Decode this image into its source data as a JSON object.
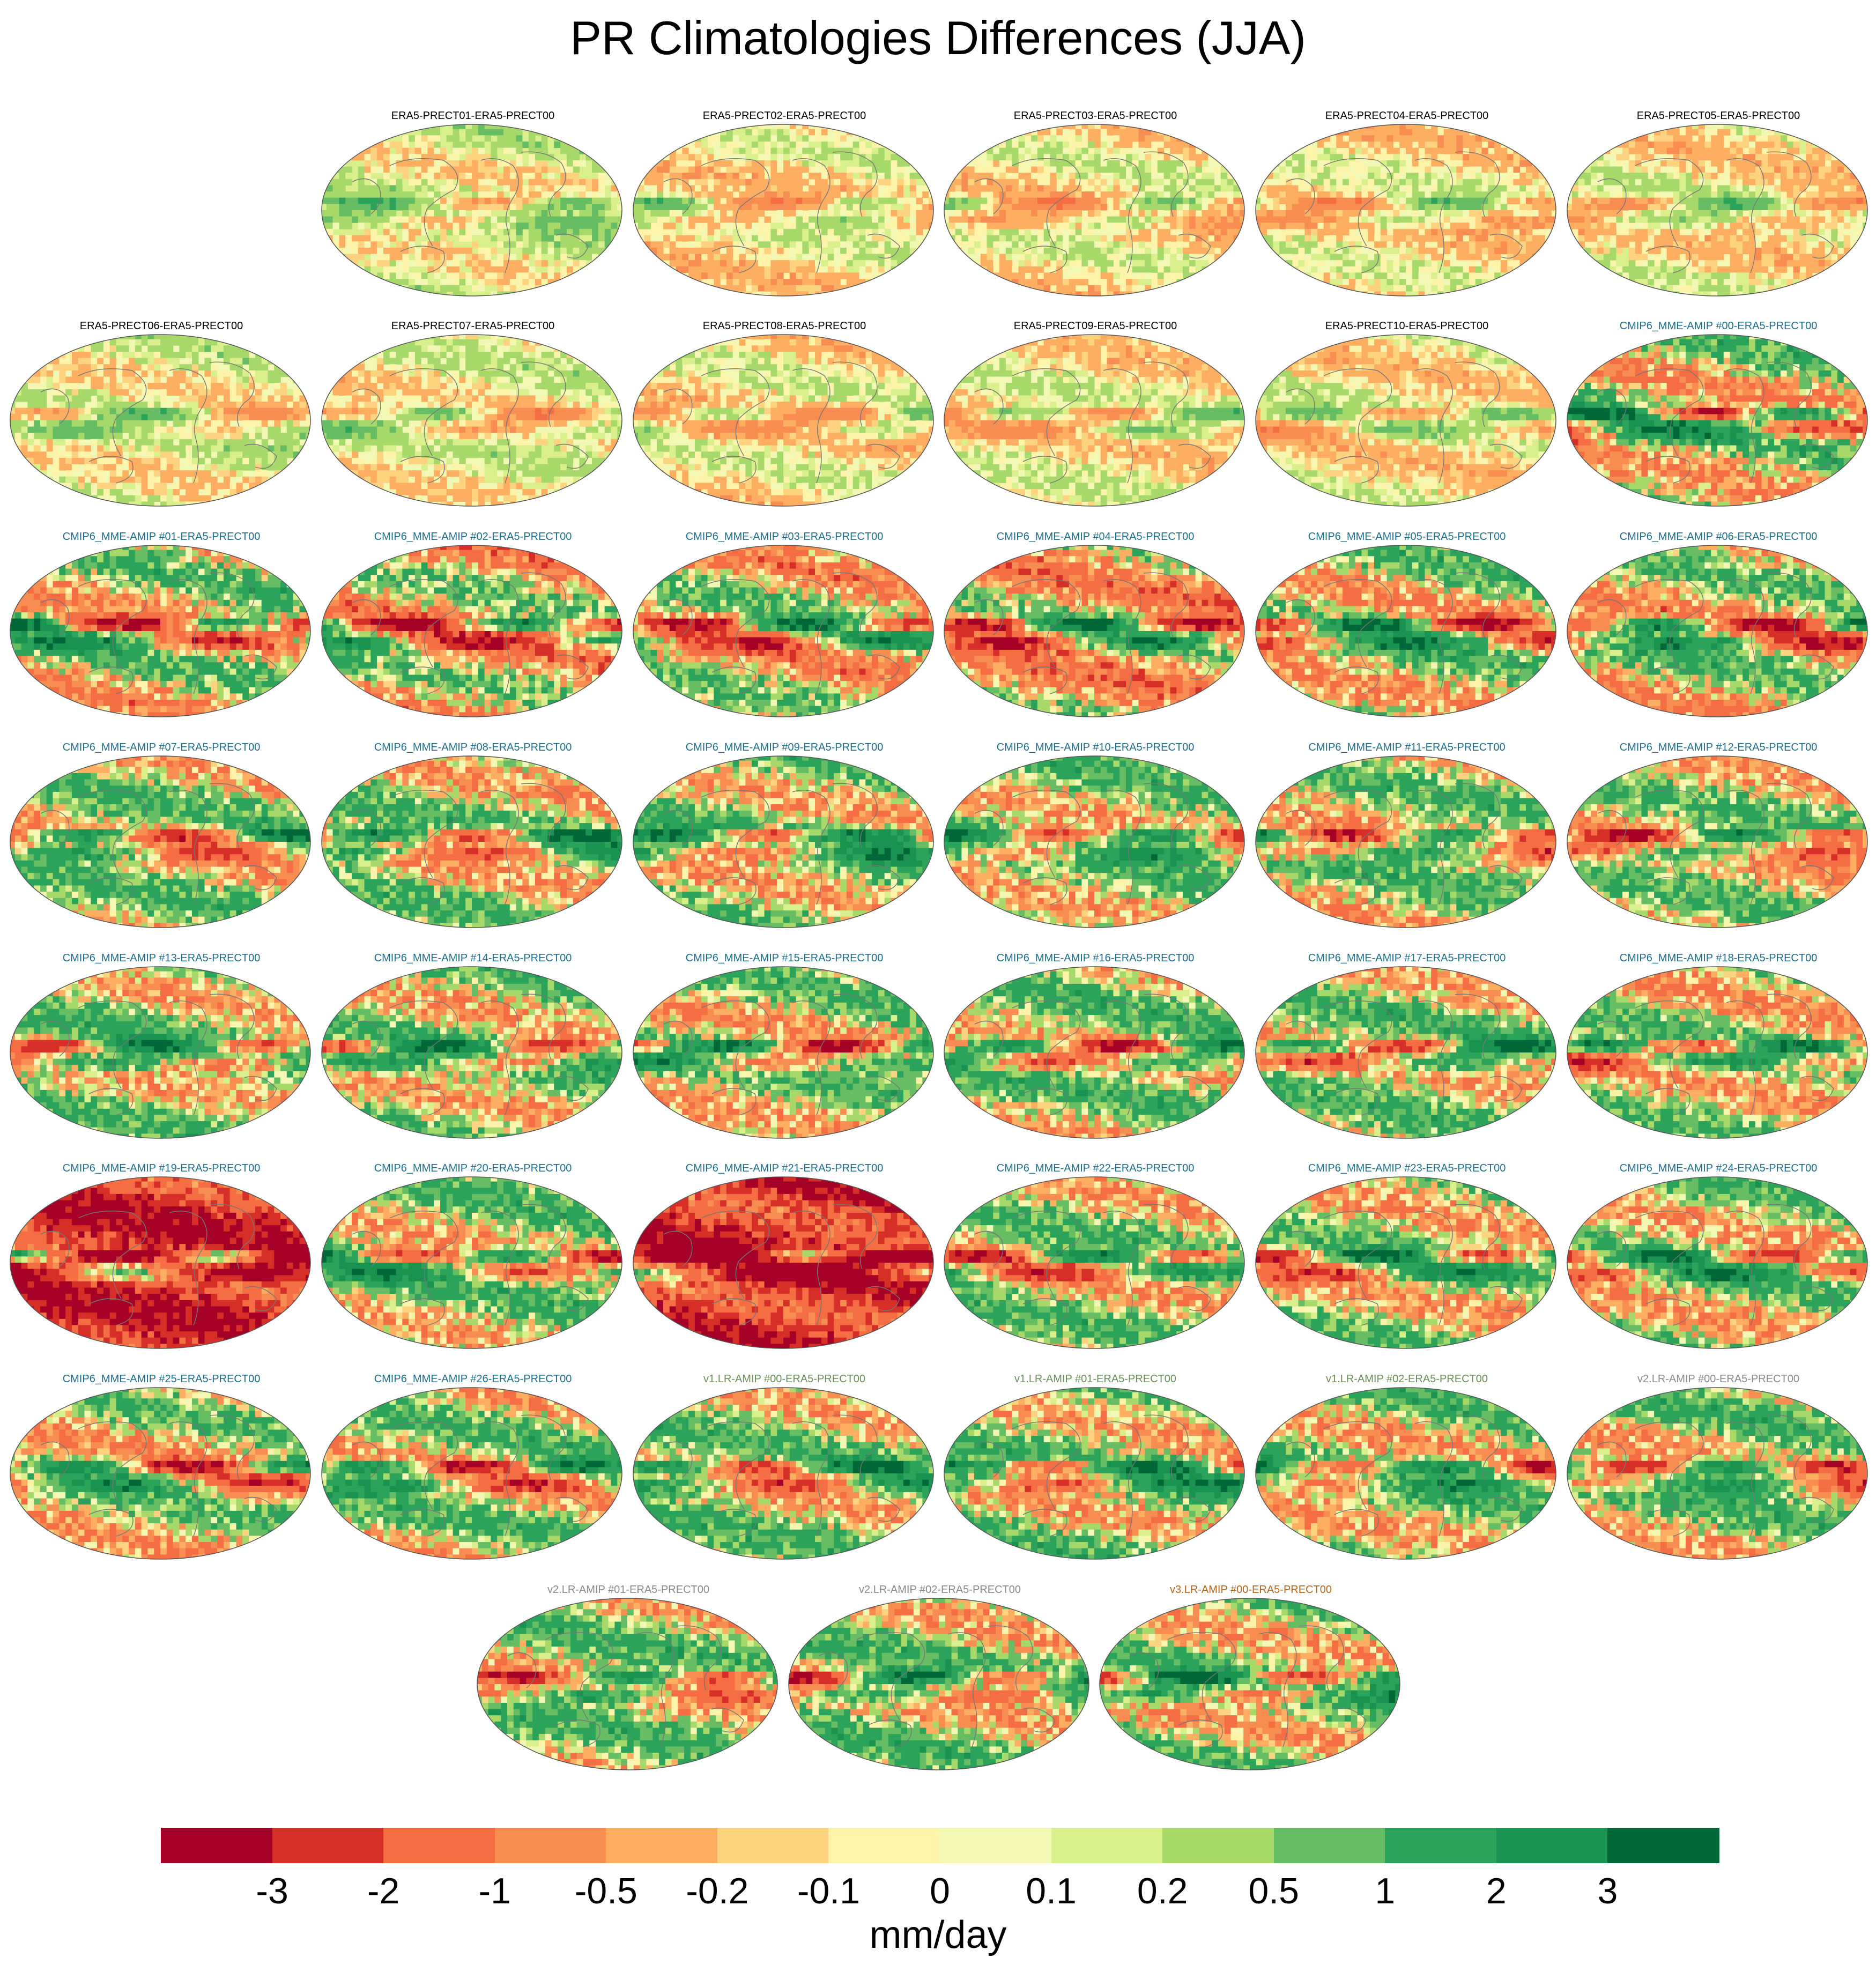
{
  "title": "PR Climatologies Differences (JJA)",
  "colors": {
    "era5_label": "#000000",
    "cmip6_label": "#1c6e8c",
    "v1_label": "#6b8e5a",
    "v2_label": "#8a8a8a",
    "v3_label": "#b5651d",
    "coast": "#777777"
  },
  "colorbar": {
    "ticks": [
      "-3",
      "-2",
      "-1",
      "-0.5",
      "-0.2",
      "-0.1",
      "0",
      "0.1",
      "0.2",
      "0.5",
      "1",
      "2",
      "3"
    ],
    "colors": [
      "#a50026",
      "#d62f27",
      "#f46d43",
      "#f88d52",
      "#fdae61",
      "#fed380",
      "#fdf3a9",
      "#f2f8b3",
      "#d9ef8b",
      "#a6d96a",
      "#66bd63",
      "#2ca35a",
      "#19934f",
      "#006837"
    ],
    "unit": "mm/day"
  },
  "chart_data": {
    "type": "heatmap",
    "description_type": "map-panel-grid",
    "season": "JJA",
    "variable": "PR",
    "panels": [
      {
        "label": "ERA5-PRECT01-ERA5-PRECT00",
        "group": "era5",
        "intensity": 0.25,
        "bias": 0.1
      },
      {
        "label": "ERA5-PRECT02-ERA5-PRECT00",
        "group": "era5",
        "intensity": 0.25,
        "bias": -0.1
      },
      {
        "label": "ERA5-PRECT03-ERA5-PRECT00",
        "group": "era5",
        "intensity": 0.25,
        "bias": -0.1
      },
      {
        "label": "ERA5-PRECT04-ERA5-PRECT00",
        "group": "era5",
        "intensity": 0.25,
        "bias": -0.1
      },
      {
        "label": "ERA5-PRECT05-ERA5-PRECT00",
        "group": "era5",
        "intensity": 0.25,
        "bias": -0.05
      },
      {
        "label": "ERA5-PRECT06-ERA5-PRECT00",
        "group": "era5",
        "intensity": 0.25,
        "bias": 0.05
      },
      {
        "label": "ERA5-PRECT07-ERA5-PRECT00",
        "group": "era5",
        "intensity": 0.25,
        "bias": 0.0
      },
      {
        "label": "ERA5-PRECT08-ERA5-PRECT00",
        "group": "era5",
        "intensity": 0.25,
        "bias": -0.1
      },
      {
        "label": "ERA5-PRECT09-ERA5-PRECT00",
        "group": "era5",
        "intensity": 0.25,
        "bias": -0.05
      },
      {
        "label": "ERA5-PRECT10-ERA5-PRECT00",
        "group": "era5",
        "intensity": 0.25,
        "bias": -0.05
      },
      {
        "label": "CMIP6_MME-AMIP  #00-ERA5-PRECT00",
        "group": "cmip6",
        "intensity": 1.0,
        "bias": 0.1
      },
      {
        "label": "CMIP6_MME-AMIP  #01-ERA5-PRECT00",
        "group": "cmip6",
        "intensity": 1.0,
        "bias": 0.0
      },
      {
        "label": "CMIP6_MME-AMIP  #02-ERA5-PRECT00",
        "group": "cmip6",
        "intensity": 1.0,
        "bias": -0.3
      },
      {
        "label": "CMIP6_MME-AMIP  #03-ERA5-PRECT00",
        "group": "cmip6",
        "intensity": 1.0,
        "bias": -0.1
      },
      {
        "label": "CMIP6_MME-AMIP  #04-ERA5-PRECT00",
        "group": "cmip6",
        "intensity": 1.0,
        "bias": -0.4
      },
      {
        "label": "CMIP6_MME-AMIP  #05-ERA5-PRECT00",
        "group": "cmip6",
        "intensity": 1.0,
        "bias": 0.1
      },
      {
        "label": "CMIP6_MME-AMIP  #06-ERA5-PRECT00",
        "group": "cmip6",
        "intensity": 1.0,
        "bias": 0.0
      },
      {
        "label": "CMIP6_MME-AMIP  #07-ERA5-PRECT00",
        "group": "cmip6",
        "intensity": 0.9,
        "bias": 0.2
      },
      {
        "label": "CMIP6_MME-AMIP  #08-ERA5-PRECT00",
        "group": "cmip6",
        "intensity": 0.9,
        "bias": 0.2
      },
      {
        "label": "CMIP6_MME-AMIP  #09-ERA5-PRECT00",
        "group": "cmip6",
        "intensity": 0.9,
        "bias": 0.3
      },
      {
        "label": "CMIP6_MME-AMIP  #10-ERA5-PRECT00",
        "group": "cmip6",
        "intensity": 0.9,
        "bias": 0.3
      },
      {
        "label": "CMIP6_MME-AMIP  #11-ERA5-PRECT00",
        "group": "cmip6",
        "intensity": 0.9,
        "bias": 0.2
      },
      {
        "label": "CMIP6_MME-AMIP  #12-ERA5-PRECT00",
        "group": "cmip6",
        "intensity": 0.9,
        "bias": 0.1
      },
      {
        "label": "CMIP6_MME-AMIP  #13-ERA5-PRECT00",
        "group": "cmip6",
        "intensity": 0.9,
        "bias": 0.3
      },
      {
        "label": "CMIP6_MME-AMIP  #14-ERA5-PRECT00",
        "group": "cmip6",
        "intensity": 0.9,
        "bias": 0.3
      },
      {
        "label": "CMIP6_MME-AMIP  #15-ERA5-PRECT00",
        "group": "cmip6",
        "intensity": 0.9,
        "bias": 0.2
      },
      {
        "label": "CMIP6_MME-AMIP  #16-ERA5-PRECT00",
        "group": "cmip6",
        "intensity": 0.9,
        "bias": 0.3
      },
      {
        "label": "CMIP6_MME-AMIP  #17-ERA5-PRECT00",
        "group": "cmip6",
        "intensity": 0.9,
        "bias": 0.3
      },
      {
        "label": "CMIP6_MME-AMIP  #18-ERA5-PRECT00",
        "group": "cmip6",
        "intensity": 0.9,
        "bias": 0.1
      },
      {
        "label": "CMIP6_MME-AMIP  #19-ERA5-PRECT00",
        "group": "cmip6",
        "intensity": 1.0,
        "bias": -2.5
      },
      {
        "label": "CMIP6_MME-AMIP  #20-ERA5-PRECT00",
        "group": "cmip6",
        "intensity": 0.9,
        "bias": 0.3
      },
      {
        "label": "CMIP6_MME-AMIP  #21-ERA5-PRECT00",
        "group": "cmip6",
        "intensity": 1.0,
        "bias": -2.5
      },
      {
        "label": "CMIP6_MME-AMIP  #22-ERA5-PRECT00",
        "group": "cmip6",
        "intensity": 0.9,
        "bias": 0.2
      },
      {
        "label": "CMIP6_MME-AMIP  #23-ERA5-PRECT00",
        "group": "cmip6",
        "intensity": 0.9,
        "bias": 0.2
      },
      {
        "label": "CMIP6_MME-AMIP  #24-ERA5-PRECT00",
        "group": "cmip6",
        "intensity": 0.9,
        "bias": 0.2
      },
      {
        "label": "CMIP6_MME-AMIP  #25-ERA5-PRECT00",
        "group": "cmip6",
        "intensity": 0.9,
        "bias": 0.0
      },
      {
        "label": "CMIP6_MME-AMIP  #26-ERA5-PRECT00",
        "group": "cmip6",
        "intensity": 0.9,
        "bias": 0.2
      },
      {
        "label": "v1.LR-AMIP  #00-ERA5-PRECT00",
        "group": "v1",
        "intensity": 0.9,
        "bias": 0.3
      },
      {
        "label": "v1.LR-AMIP  #01-ERA5-PRECT00",
        "group": "v1",
        "intensity": 0.9,
        "bias": 0.3
      },
      {
        "label": "v1.LR-AMIP  #02-ERA5-PRECT00",
        "group": "v1",
        "intensity": 0.9,
        "bias": 0.3
      },
      {
        "label": "v2.LR-AMIP  #00-ERA5-PRECT00",
        "group": "v2",
        "intensity": 0.9,
        "bias": 0.3
      },
      {
        "label": "v2.LR-AMIP  #01-ERA5-PRECT00",
        "group": "v2",
        "intensity": 0.9,
        "bias": 0.3
      },
      {
        "label": "v2.LR-AMIP  #02-ERA5-PRECT00",
        "group": "v2",
        "intensity": 0.9,
        "bias": 0.3
      },
      {
        "label": "v3.LR-AMIP  #00-ERA5-PRECT00",
        "group": "v3",
        "intensity": 0.9,
        "bias": 0.3
      }
    ],
    "colorbar_levels": [
      -3,
      -2,
      -1,
      -0.5,
      -0.2,
      -0.1,
      0,
      0.1,
      0.2,
      0.5,
      1,
      2,
      3
    ],
    "xlabel": "mm/day"
  }
}
